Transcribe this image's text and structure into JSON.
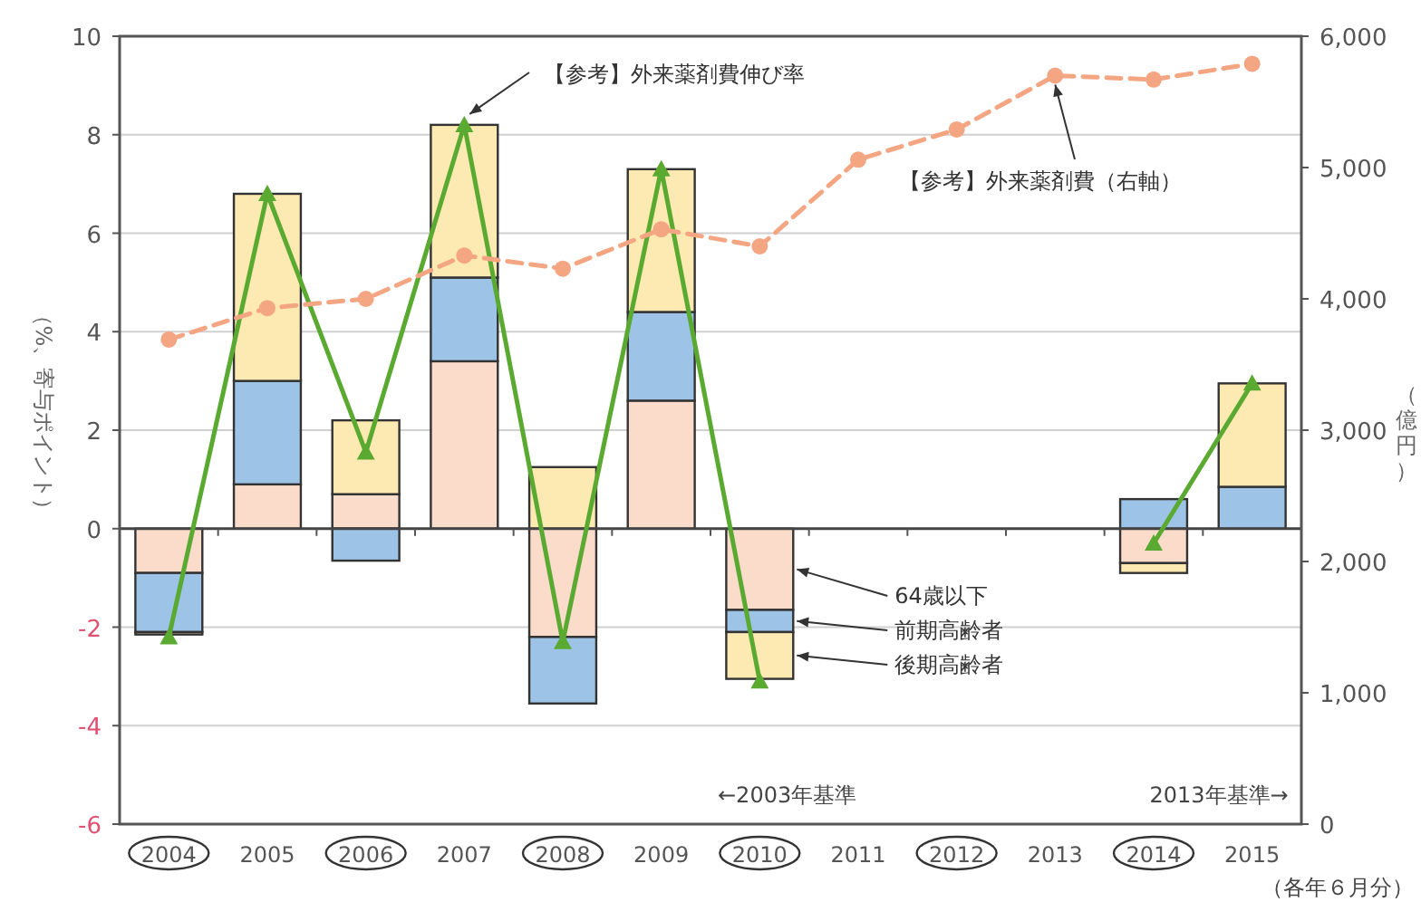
{
  "chart_data": {
    "type": "bar",
    "stacked": true,
    "legend": "right",
    "grid": "y",
    "ylabel": "（%、寄与ポイント）",
    "y2label": "（億円）",
    "categories": [
      "2004",
      "2005",
      "2006",
      "2007",
      "2008",
      "2009",
      "2010",
      "2011",
      "2012",
      "2013",
      "2014",
      "2015"
    ],
    "ylim": [
      -6,
      10
    ],
    "yticks": [
      -6,
      -4,
      -2,
      0,
      2,
      4,
      6,
      8,
      10
    ],
    "y2lim": [
      0,
      6000
    ],
    "y2ticks": [
      {
        "value": 0,
        "label": "0"
      },
      {
        "value": 1000,
        "label": "1,000"
      },
      {
        "value": 2000,
        "label": "2,000"
      },
      {
        "value": 3000,
        "label": "3,000"
      },
      {
        "value": 4000,
        "label": "4,000"
      },
      {
        "value": 5000,
        "label": "5,000"
      },
      {
        "value": 6000,
        "label": "6,000"
      }
    ],
    "series": [
      {
        "name": "64歳以下",
        "color": "#fbdccb",
        "values": [
          -0.9,
          0.9,
          0.7,
          3.4,
          -2.2,
          2.6,
          -1.65,
          null,
          null,
          null,
          -0.7,
          0
        ]
      },
      {
        "name": "前期高齢者",
        "color": "#9dc3e6",
        "values": [
          -1.2,
          2.1,
          -0.65,
          1.7,
          -1.35,
          1.8,
          -0.45,
          null,
          null,
          null,
          0.6,
          0.85
        ]
      },
      {
        "name": "後期高齢者",
        "color": "#fde9b2",
        "values": [
          -0.05,
          3.8,
          1.5,
          3.1,
          1.25,
          2.9,
          -0.95,
          null,
          null,
          null,
          -0.2,
          2.1
        ]
      },
      {
        "name": "【参考】外来薬剤費伸び率",
        "type": "line",
        "color": "#5aaa32",
        "marker": "triangle",
        "line_style": "solid",
        "values": [
          -2.2,
          6.8,
          1.55,
          8.2,
          -2.3,
          7.3,
          -3.1,
          null,
          null,
          null,
          -0.3,
          2.95
        ]
      },
      {
        "name": "【参考】外来薬剤費（右軸）",
        "type": "line",
        "axis": "y2",
        "color": "#f4a582",
        "marker": "circle",
        "line_style": "dashed",
        "values": [
          3690,
          3930,
          4000,
          4330,
          4230,
          4530,
          4400,
          5060,
          5290,
          5700,
          5670,
          5790
        ]
      }
    ],
    "annotations": [
      "←2003年基準",
      "2013年基準→",
      "（各年６月分）"
    ]
  }
}
